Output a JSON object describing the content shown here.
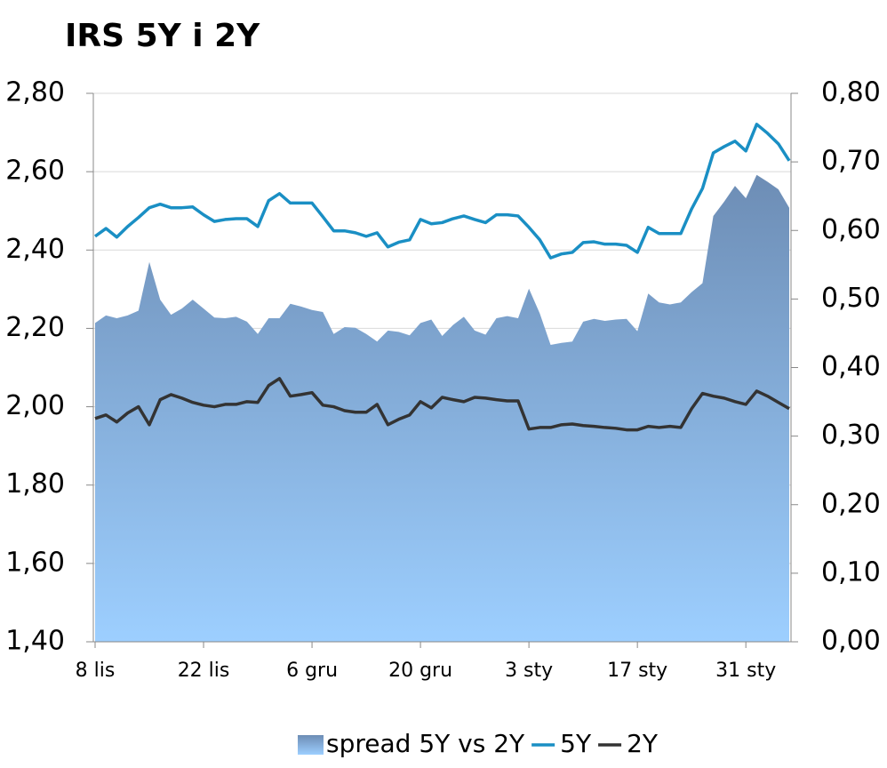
{
  "chart_data": {
    "type": "line",
    "title": "IRS 5Y i 2Y",
    "categories": [
      "8 lis",
      null,
      null,
      null,
      null,
      null,
      null,
      null,
      null,
      null,
      "22 lis",
      null,
      null,
      null,
      null,
      null,
      null,
      null,
      null,
      null,
      "6 gru",
      null,
      null,
      null,
      null,
      null,
      null,
      null,
      null,
      null,
      "20 gru",
      null,
      null,
      null,
      null,
      null,
      null,
      null,
      null,
      null,
      "3 sty",
      null,
      null,
      null,
      null,
      null,
      null,
      null,
      null,
      null,
      "17 sty",
      null,
      null,
      null,
      null,
      null,
      null,
      null,
      null,
      null,
      "31 sty",
      null,
      null,
      null,
      null
    ],
    "series": [
      {
        "name": "spread 5Y vs 2Y",
        "type": "area",
        "axis": "y2",
        "color": "#7f9fc8",
        "values": [
          0.465,
          0.476,
          0.472,
          0.476,
          0.483,
          0.554,
          0.499,
          0.477,
          0.486,
          0.499,
          0.486,
          0.473,
          0.472,
          0.474,
          0.467,
          0.449,
          0.472,
          0.472,
          0.493,
          0.489,
          0.484,
          0.481,
          0.449,
          0.459,
          0.458,
          0.449,
          0.438,
          0.454,
          0.452,
          0.447,
          0.465,
          0.47,
          0.446,
          0.462,
          0.474,
          0.454,
          0.448,
          0.472,
          0.475,
          0.472,
          0.515,
          0.479,
          0.433,
          0.436,
          0.438,
          0.467,
          0.471,
          0.468,
          0.47,
          0.471,
          0.453,
          0.508,
          0.495,
          0.492,
          0.495,
          0.51,
          0.523,
          0.621,
          0.642,
          0.665,
          0.647,
          0.681,
          0.671,
          0.66,
          0.633
        ]
      },
      {
        "name": "5Y",
        "type": "line",
        "color": "#1a8fc4",
        "values": [
          2.435,
          2.455,
          2.433,
          2.46,
          2.483,
          2.508,
          2.517,
          2.508,
          2.508,
          2.51,
          2.49,
          2.473,
          2.478,
          2.48,
          2.48,
          2.46,
          2.526,
          2.544,
          2.52,
          2.52,
          2.52,
          2.485,
          2.449,
          2.449,
          2.444,
          2.435,
          2.444,
          2.408,
          2.42,
          2.426,
          2.478,
          2.467,
          2.47,
          2.48,
          2.487,
          2.478,
          2.47,
          2.49,
          2.49,
          2.487,
          2.458,
          2.426,
          2.38,
          2.39,
          2.394,
          2.419,
          2.421,
          2.415,
          2.415,
          2.412,
          2.394,
          2.458,
          2.442,
          2.442,
          2.442,
          2.505,
          2.557,
          2.648,
          2.664,
          2.678,
          2.653,
          2.721,
          2.698,
          2.671,
          2.628
        ]
      },
      {
        "name": "2Y",
        "type": "line",
        "color": "#333333",
        "values": [
          1.97,
          1.979,
          1.961,
          1.984,
          2.0,
          1.954,
          2.018,
          2.031,
          2.022,
          2.011,
          2.004,
          2.0,
          2.006,
          2.006,
          2.013,
          2.011,
          2.054,
          2.072,
          2.027,
          2.031,
          2.036,
          2.004,
          2.0,
          1.99,
          1.986,
          1.986,
          2.006,
          1.954,
          1.968,
          1.979,
          2.013,
          1.997,
          2.024,
          2.018,
          2.013,
          2.024,
          2.022,
          2.018,
          2.015,
          2.015,
          1.943,
          1.947,
          1.947,
          1.954,
          1.956,
          1.952,
          1.95,
          1.947,
          1.945,
          1.941,
          1.941,
          1.95,
          1.947,
          1.95,
          1.947,
          1.995,
          2.034,
          2.027,
          2.022,
          2.013,
          2.006,
          2.04,
          2.027,
          2.011,
          1.995
        ]
      }
    ],
    "ylim": [
      1.4,
      2.8
    ],
    "yticks": [
      {
        "value": 1.4,
        "label": "1,40"
      },
      {
        "value": 1.6,
        "label": "1,60"
      },
      {
        "value": 1.8,
        "label": "1,80"
      },
      {
        "value": 2.0,
        "label": "2,00"
      },
      {
        "value": 2.2,
        "label": "2,20"
      },
      {
        "value": 2.4,
        "label": "2,40"
      },
      {
        "value": 2.6,
        "label": "2,60"
      },
      {
        "value": 2.8,
        "label": "2,80"
      }
    ],
    "y2lim": [
      0,
      0.8
    ],
    "y2ticks": [
      {
        "value": 0,
        "label": "0,00"
      },
      {
        "value": 0.1,
        "label": "0,10"
      },
      {
        "value": 0.2,
        "label": "0,20"
      },
      {
        "value": 0.3,
        "label": "0,30"
      },
      {
        "value": 0.4,
        "label": "0,40"
      },
      {
        "value": 0.5,
        "label": "0,50"
      },
      {
        "value": 0.6,
        "label": "0,60"
      },
      {
        "value": 0.7,
        "label": "0,70"
      },
      {
        "value": 0.8,
        "label": "0,80"
      }
    ],
    "grid": true,
    "legend": "bottom"
  }
}
